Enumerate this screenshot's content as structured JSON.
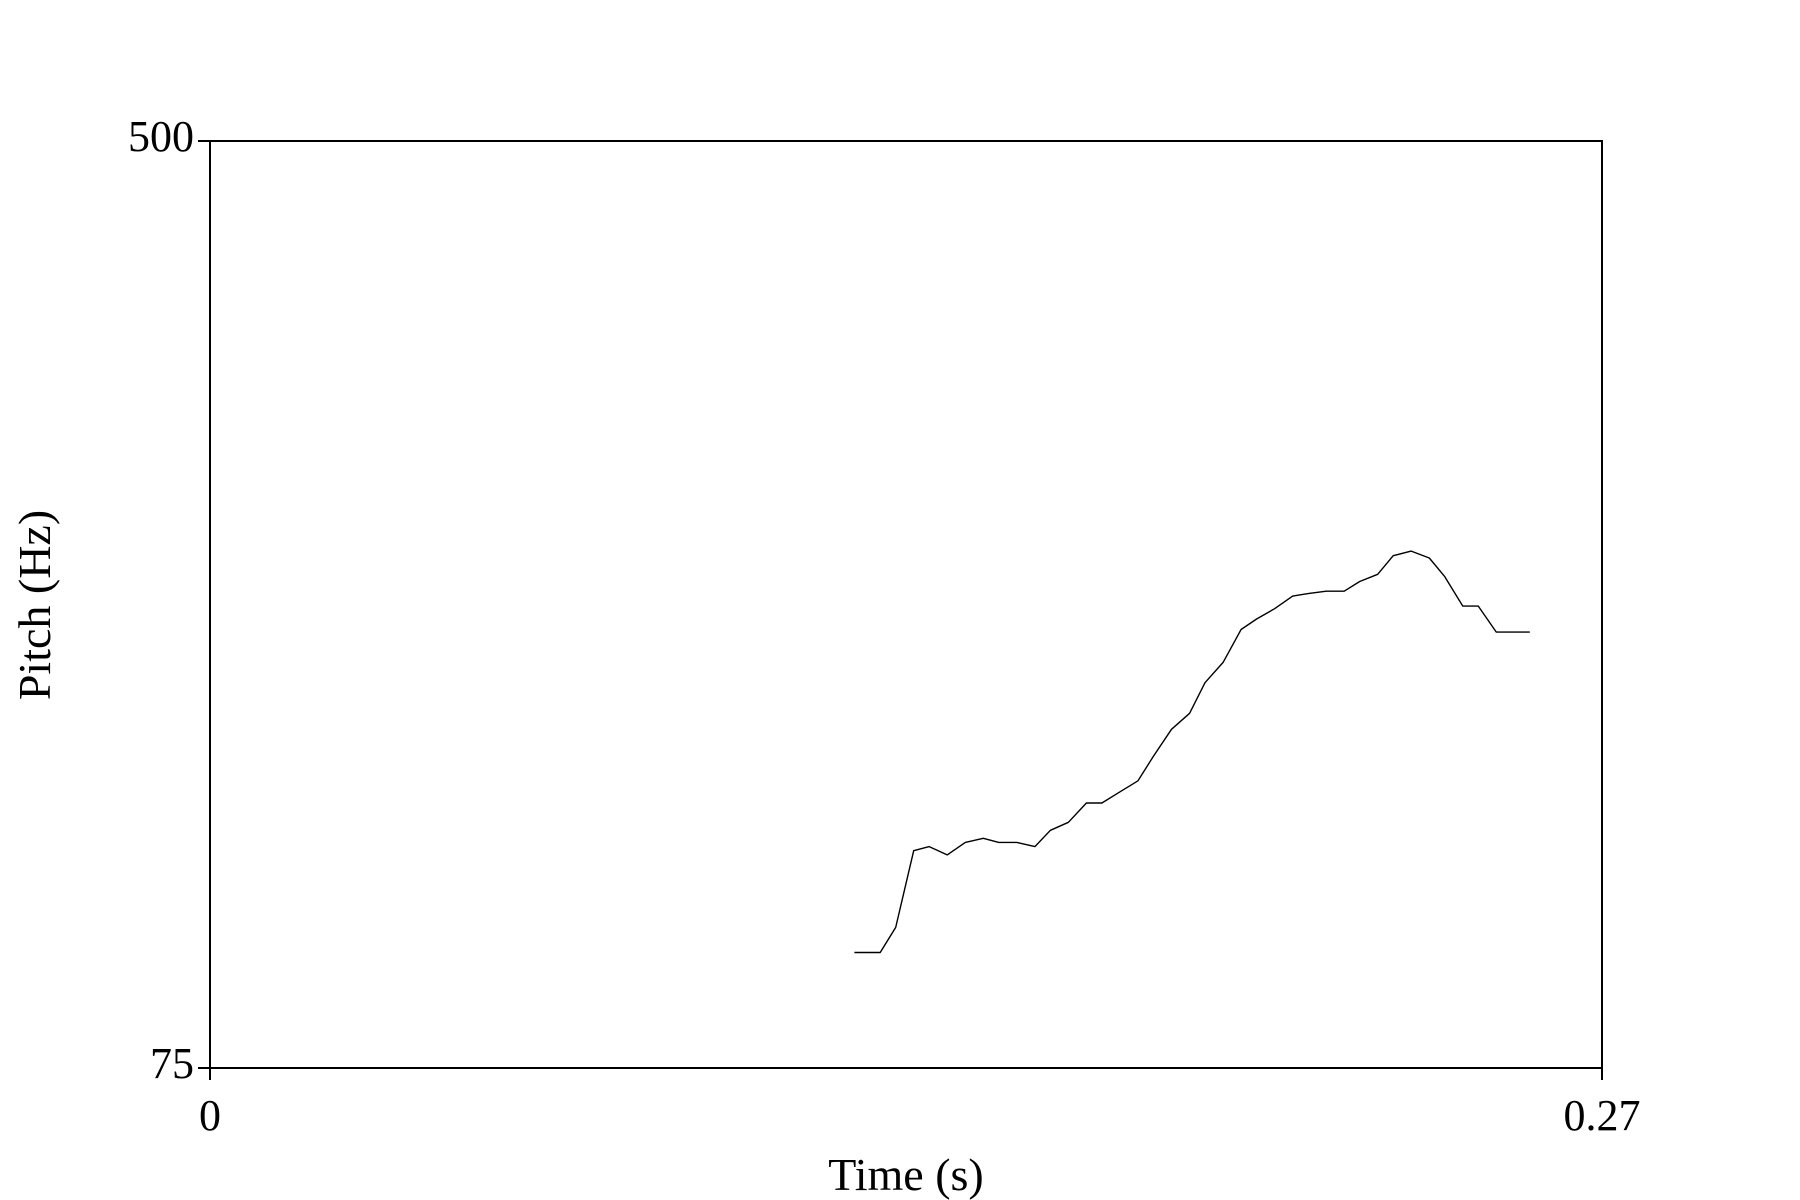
{
  "chart_data": {
    "type": "line",
    "title": "",
    "xlabel": "Time (s)",
    "ylabel": "Pitch (Hz)",
    "xlim": [
      0,
      0.27
    ],
    "ylim": [
      75,
      500
    ],
    "x_tick_labels": [
      "0",
      "0.27"
    ],
    "y_tick_labels": [
      "75",
      "500"
    ],
    "grid": false,
    "line_color": "#000000",
    "series": [
      {
        "x": [
          0.125,
          0.13,
          0.133,
          0.1365,
          0.1395,
          0.143,
          0.1465,
          0.15,
          0.153,
          0.1565,
          0.16,
          0.163,
          0.1665,
          0.17,
          0.173,
          0.1765,
          0.18,
          0.183,
          0.1865,
          0.19,
          0.193,
          0.1965,
          0.2,
          0.203,
          0.2065,
          0.21,
          0.213,
          0.2165,
          0.22,
          0.223,
          0.2265,
          0.2295,
          0.233,
          0.2365,
          0.2395,
          0.243,
          0.246,
          0.2495,
          0.253,
          0.256
        ],
        "y": [
          95,
          95,
          100,
          117,
          118,
          116,
          119,
          120,
          119,
          119,
          118,
          122,
          124,
          129,
          129,
          132,
          135,
          142,
          150,
          155,
          165,
          172,
          184,
          188,
          192,
          197,
          198,
          199,
          199,
          203,
          206,
          214,
          216,
          213,
          205,
          193,
          193,
          183,
          183,
          183
        ]
      }
    ]
  }
}
